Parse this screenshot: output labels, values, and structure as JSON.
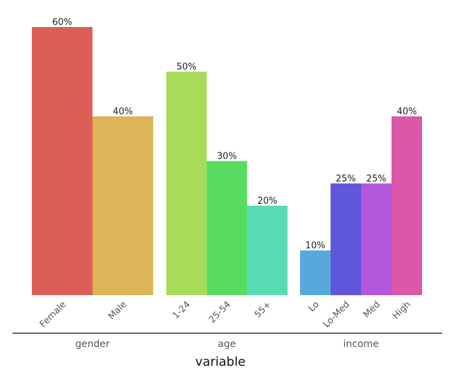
{
  "chart_data": {
    "type": "bar",
    "xlabel": "variable",
    "ylabel": "",
    "ylim": [
      0,
      60
    ],
    "value_suffix": "%",
    "grid": false,
    "groups": [
      {
        "name": "gender",
        "categories": [
          "Female",
          "Male"
        ],
        "values": [
          60,
          40
        ],
        "colors": [
          "#db5f57",
          "#dbb557"
        ]
      },
      {
        "name": "age",
        "categories": [
          "1-24",
          "25-54",
          "55+"
        ],
        "values": [
          50,
          30,
          20
        ],
        "colors": [
          "#a8db57",
          "#57db5f",
          "#57dbb3"
        ]
      },
      {
        "name": "income",
        "categories": [
          "Lo",
          "Lo-Med",
          "Med",
          "High"
        ],
        "values": [
          10,
          25,
          25,
          40
        ],
        "colors": [
          "#57a8db",
          "#5f57db",
          "#b557db",
          "#db57a8"
        ]
      }
    ]
  }
}
